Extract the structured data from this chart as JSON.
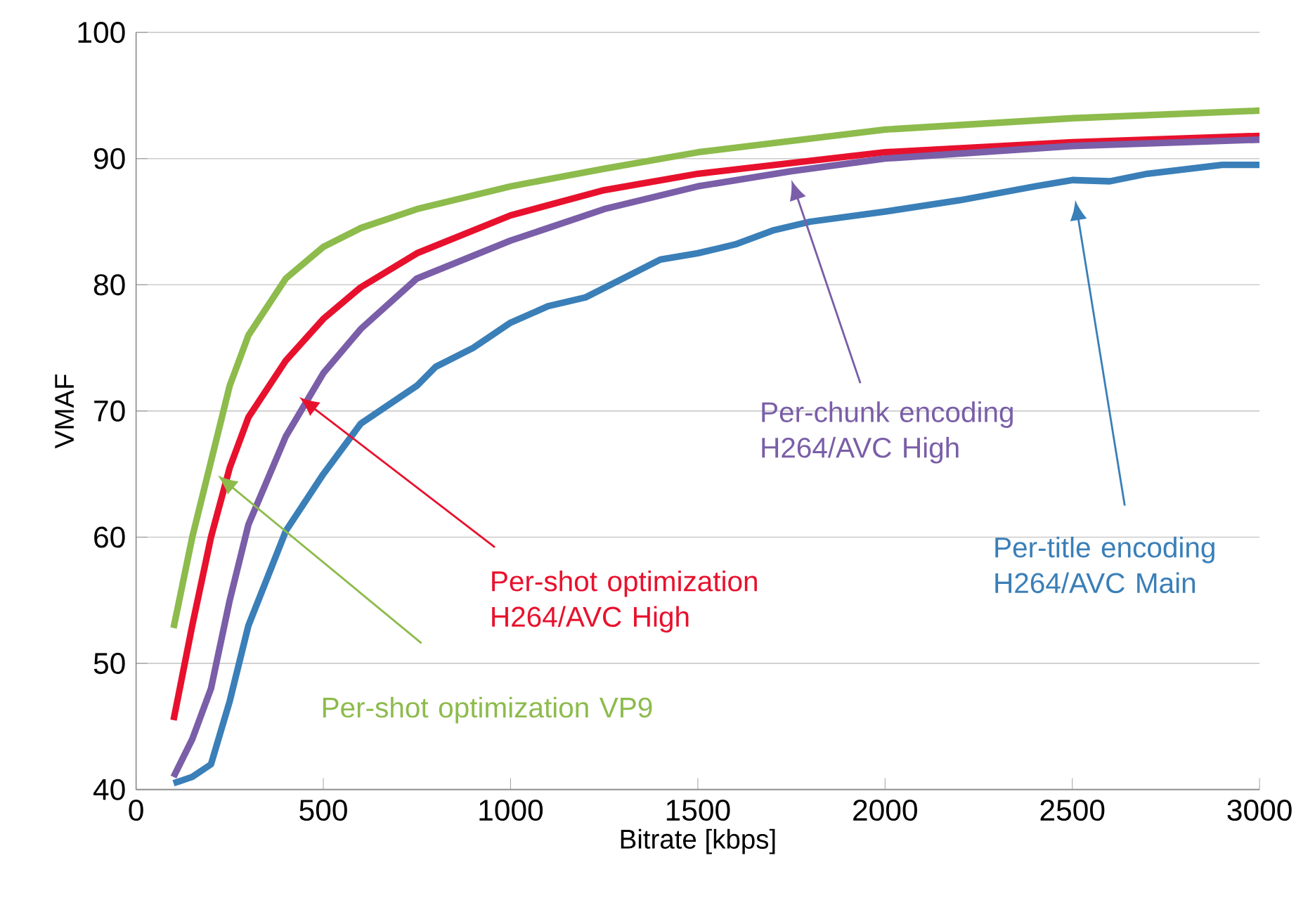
{
  "chart_data": {
    "type": "line",
    "xlabel": "Bitrate [kbps]",
    "ylabel": "VMAF",
    "xlim": [
      0,
      3000
    ],
    "xticks": [
      0,
      500,
      1000,
      1500,
      2000,
      2500,
      3000
    ],
    "ylim": [
      40,
      100
    ],
    "yticks": [
      40,
      50,
      60,
      70,
      80,
      90,
      100
    ],
    "grid": "y",
    "legend": false,
    "marker": "none",
    "line_style": "solid",
    "series": [
      {
        "name": "Per-shot optimization VP9",
        "color": "#8dbb4c",
        "x": [
          100,
          150,
          200,
          250,
          300,
          400,
          500,
          600,
          750,
          1000,
          1250,
          1500,
          2000,
          2500,
          3000
        ],
        "values": [
          52.8,
          60,
          66,
          72,
          76,
          80.5,
          83,
          84.5,
          86,
          87.8,
          89.2,
          90.5,
          92.3,
          93.2,
          93.8
        ]
      },
      {
        "name": "Per-shot optimization H264/AVC High",
        "color": "#e8112d",
        "x": [
          100,
          150,
          200,
          250,
          300,
          400,
          500,
          600,
          750,
          1000,
          1250,
          1500,
          2000,
          2500,
          3000
        ],
        "values": [
          45.5,
          53,
          60,
          65.5,
          69.5,
          74,
          77.3,
          79.8,
          82.5,
          85.5,
          87.5,
          88.8,
          90.5,
          91.3,
          91.8
        ]
      },
      {
        "name": "Per-chunk encoding H264/AVC High",
        "color": "#7a5ea8",
        "x": [
          100,
          150,
          200,
          250,
          300,
          400,
          500,
          600,
          750,
          1000,
          1250,
          1500,
          1750,
          2000,
          2500,
          3000
        ],
        "values": [
          41,
          44,
          48,
          55,
          61,
          68,
          73,
          76.5,
          80.5,
          83.5,
          86,
          87.8,
          89,
          90,
          91,
          91.5
        ]
      },
      {
        "name": "Per-title encoding H264/AVC Main",
        "color": "#3a7fb8",
        "x": [
          100,
          150,
          200,
          250,
          300,
          400,
          500,
          600,
          750,
          800,
          900,
          1000,
          1100,
          1200,
          1300,
          1400,
          1500,
          1600,
          1700,
          1800,
          2000,
          2200,
          2400,
          2500,
          2600,
          2700,
          2900,
          3000
        ],
        "values": [
          40.5,
          41,
          42,
          47,
          53,
          60.5,
          65,
          69,
          72,
          73.5,
          75,
          77,
          78.3,
          79,
          80.5,
          82,
          82.5,
          83.2,
          84.3,
          85,
          85.8,
          86.7,
          87.8,
          88.3,
          88.2,
          88.8,
          89.5,
          89.5
        ]
      }
    ]
  }
}
